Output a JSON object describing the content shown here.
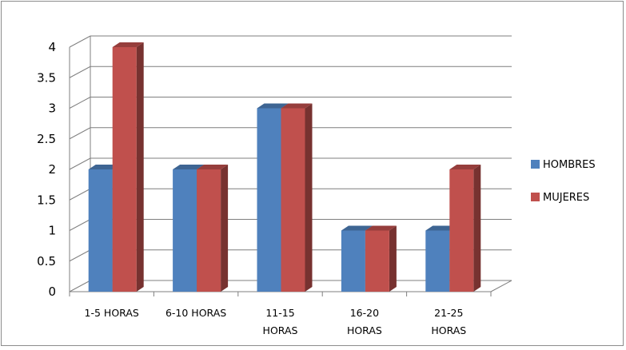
{
  "chart_data": {
    "type": "bar",
    "categories": [
      [
        "1-5 HORAS"
      ],
      [
        "6-10 HORAS"
      ],
      [
        "11-15",
        "HORAS"
      ],
      [
        "16-20",
        "HORAS"
      ],
      [
        "21-25",
        "HORAS"
      ]
    ],
    "series": [
      {
        "name": "HOMBRES",
        "values": [
          2,
          2,
          3,
          1,
          1
        ],
        "color": "#4f81bd"
      },
      {
        "name": "MUJERES",
        "values": [
          4,
          2,
          3,
          1,
          2
        ],
        "color": "#c0504d"
      }
    ],
    "ylim": [
      0,
      4
    ],
    "yticks": [
      "0",
      "0.5",
      "1",
      "1.5",
      "2",
      "2.5",
      "3",
      "3.5",
      "4"
    ],
    "grid": true,
    "legend_position": "right",
    "style": "3d-clustered-column"
  }
}
